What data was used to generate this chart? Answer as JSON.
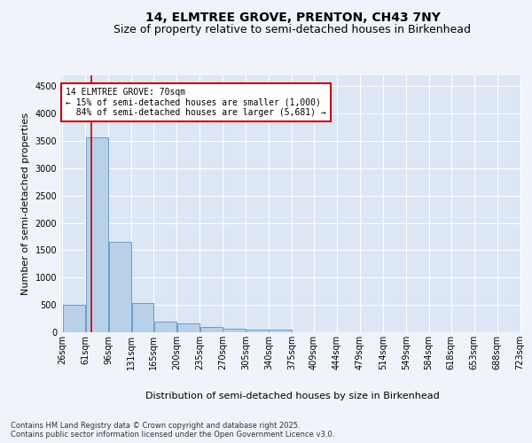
{
  "title_line1": "14, ELMTREE GROVE, PRENTON, CH43 7NY",
  "title_line2": "Size of property relative to semi-detached houses in Birkenhead",
  "xlabel": "Distribution of semi-detached houses by size in Birkenhead",
  "ylabel": "Number of semi-detached properties",
  "footnote": "Contains HM Land Registry data © Crown copyright and database right 2025.\nContains public sector information licensed under the Open Government Licence v3.0.",
  "bar_left_edges": [
    26,
    61,
    96,
    131,
    165,
    200,
    235,
    270,
    305,
    340,
    375,
    409,
    444,
    479,
    514,
    549,
    584,
    618,
    653,
    688
  ],
  "bar_widths": [
    35,
    35,
    35,
    34,
    35,
    35,
    35,
    35,
    35,
    35,
    34,
    35,
    35,
    35,
    35,
    35,
    34,
    35,
    35,
    35
  ],
  "bar_heights": [
    500,
    3570,
    1650,
    530,
    200,
    155,
    100,
    70,
    45,
    55,
    0,
    0,
    0,
    0,
    0,
    0,
    0,
    0,
    0,
    0
  ],
  "bar_color": "#b8d0e8",
  "bar_edge_color": "#6a9ec8",
  "property_size": 70,
  "property_label": "14 ELMTREE GROVE: 70sqm",
  "smaller_pct": 15,
  "smaller_count": 1000,
  "larger_pct": 84,
  "larger_count": 5681,
  "vline_color": "#cc0000",
  "annotation_box_color": "#cc0000",
  "ylim": [
    0,
    4700
  ],
  "yticks": [
    0,
    500,
    1000,
    1500,
    2000,
    2500,
    3000,
    3500,
    4000,
    4500
  ],
  "tick_labels": [
    "26sqm",
    "61sqm",
    "96sqm",
    "131sqm",
    "165sqm",
    "200sqm",
    "235sqm",
    "270sqm",
    "305sqm",
    "340sqm",
    "375sqm",
    "409sqm",
    "444sqm",
    "479sqm",
    "514sqm",
    "549sqm",
    "584sqm",
    "618sqm",
    "653sqm",
    "688sqm",
    "723sqm"
  ],
  "background_color": "#f0f4fa",
  "plot_bg_color": "#dce6f5",
  "grid_color": "#ffffff",
  "title_fontsize": 10,
  "subtitle_fontsize": 9,
  "axis_label_fontsize": 8,
  "tick_fontsize": 7,
  "ann_fontsize": 7
}
